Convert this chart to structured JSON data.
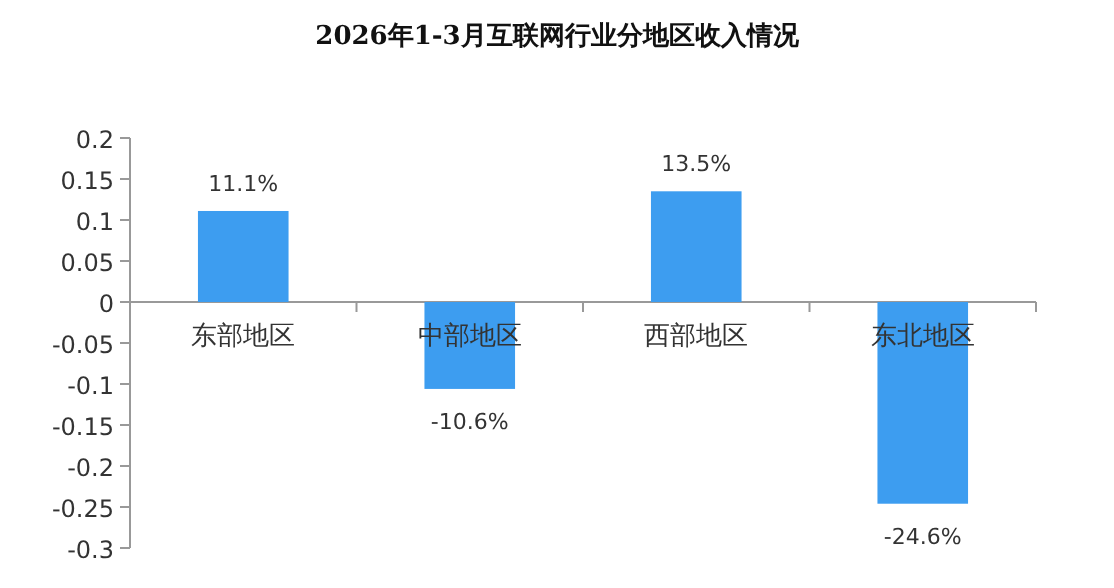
{
  "chart_data": {
    "type": "bar",
    "title": "2026年1-3月互联网行业分地区收入情况",
    "categories": [
      "东部地区",
      "中部地区",
      "西部地区",
      "东北地区"
    ],
    "values": [
      0.111,
      -0.106,
      0.135,
      -0.246
    ],
    "value_labels": [
      "11.1%",
      "-10.6%",
      "13.5%",
      "-24.6%"
    ],
    "color": "#3d9df0",
    "ylim": [
      -0.3,
      0.2
    ],
    "yticks": [
      -0.3,
      -0.25,
      -0.2,
      -0.15,
      -0.1,
      -0.05,
      0,
      0.05,
      0.1,
      0.15,
      0.2
    ],
    "grid": false
  }
}
